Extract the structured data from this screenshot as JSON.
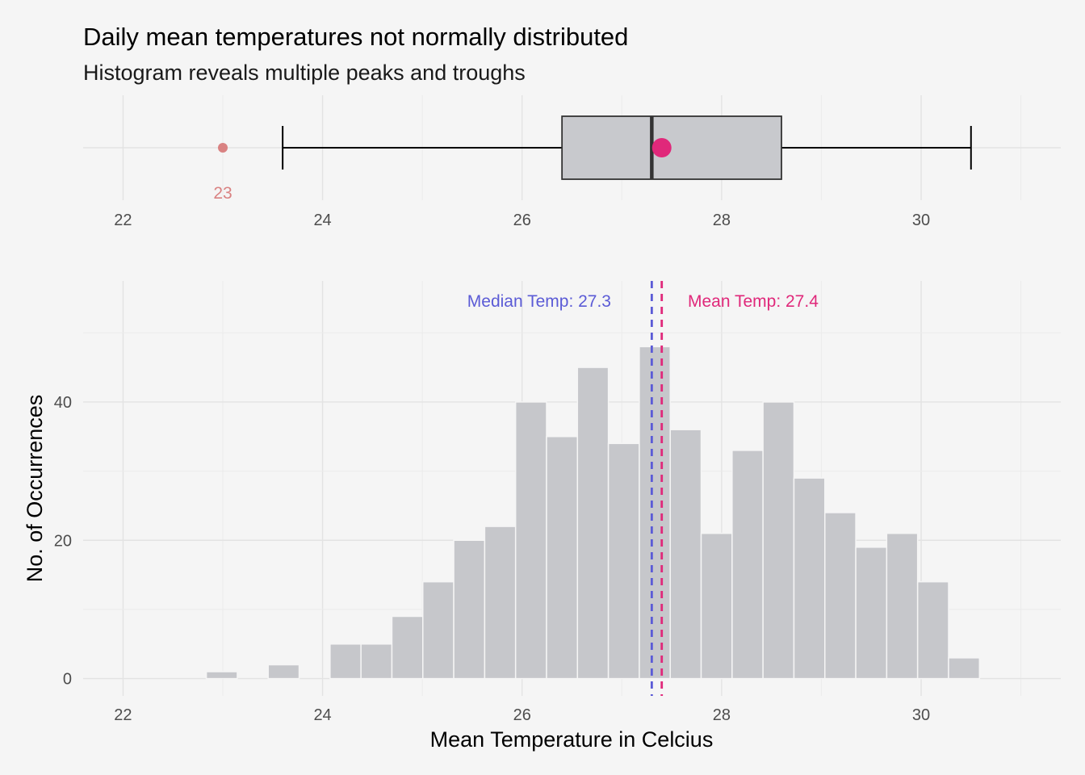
{
  "title": "Daily mean temperatures not normally distributed",
  "subtitle": "Histogram reveals multiple peaks and troughs",
  "colors": {
    "background": "#f5f5f5",
    "bar_fill": "#c6c7cb",
    "box_fill": "#c8c9cd",
    "median_line": "#5b5bd6",
    "mean_line": "#e0287a",
    "outlier": "#d98282"
  },
  "chart_data": [
    {
      "type": "box",
      "xlim": [
        21.6,
        31.4
      ],
      "x_ticks": [
        22,
        24,
        26,
        28,
        30
      ],
      "x_tick_labels": [
        "22",
        "24",
        "26",
        "28",
        "30"
      ],
      "lower_whisker": 23.6,
      "q1": 26.4,
      "median": 27.3,
      "q3": 28.6,
      "upper_whisker": 30.5,
      "mean": 27.4,
      "outliers": [
        23.0
      ],
      "outlier_labels": [
        "23"
      ]
    },
    {
      "type": "bar",
      "xlabel": "Mean Temperature in Celcius",
      "ylabel": "No. of Occurrences",
      "xlim": [
        21.6,
        31.4
      ],
      "ylim": [
        -2.5,
        57.5
      ],
      "x_ticks": [
        22,
        24,
        26,
        28,
        30
      ],
      "x_tick_labels": [
        "22",
        "24",
        "26",
        "28",
        "30"
      ],
      "y_ticks": [
        0,
        20,
        40
      ],
      "y_tick_labels": [
        "0",
        "20",
        "40"
      ],
      "bin_width": 0.31,
      "bin_centers": [
        22.68,
        22.99,
        23.3,
        23.61,
        23.92,
        24.23,
        24.54,
        24.85,
        25.16,
        25.47,
        25.78,
        26.09,
        26.4,
        26.71,
        27.02,
        27.33,
        27.64,
        27.95,
        28.26,
        28.57,
        28.88,
        29.19,
        29.5,
        29.81,
        30.12,
        30.43
      ],
      "counts": [
        0,
        1,
        0,
        2,
        0,
        5,
        5,
        9,
        14,
        20,
        22,
        40,
        35,
        45,
        34,
        48,
        36,
        21,
        33,
        40,
        29,
        24,
        19,
        21,
        14,
        3
      ],
      "median": 27.3,
      "mean": 27.4,
      "median_label": "Median Temp: 27.3",
      "mean_label": "Mean Temp: 27.4"
    }
  ]
}
